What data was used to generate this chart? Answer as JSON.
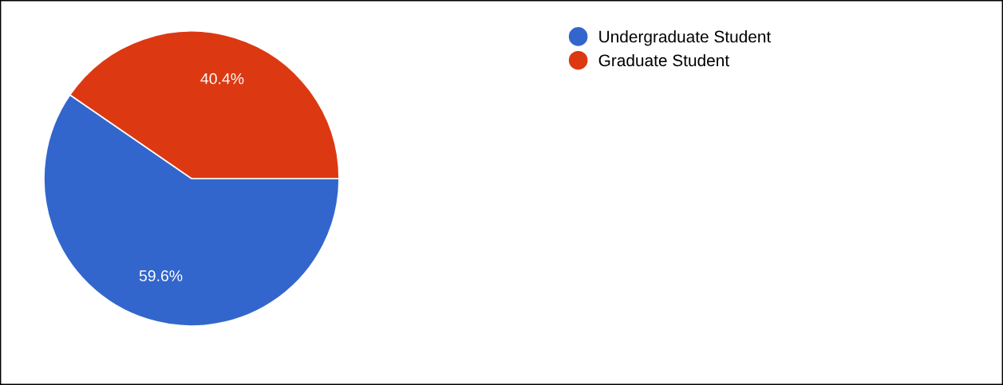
{
  "chart_data": {
    "type": "pie",
    "categories": [
      "Undergraduate Student",
      "Graduate Student"
    ],
    "values": [
      59.6,
      40.4
    ],
    "colors": [
      "#3366cc",
      "#dc3912"
    ],
    "value_labels": [
      "59.6%",
      "40.4%"
    ],
    "legend": "top right"
  }
}
